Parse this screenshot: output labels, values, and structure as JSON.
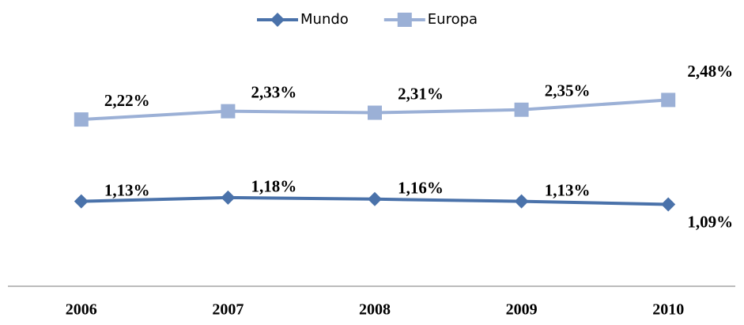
{
  "chart_data": {
    "type": "line",
    "categories": [
      "2006",
      "2007",
      "2008",
      "2009",
      "2010"
    ],
    "series": [
      {
        "name": "Mundo",
        "color": "#4a72aa",
        "marker": "diamond",
        "values": [
          1.13,
          1.18,
          1.16,
          1.13,
          1.09
        ],
        "value_labels": [
          "1,13%",
          "1,18%",
          "1,16%",
          "1,13%",
          "1,09%"
        ]
      },
      {
        "name": "Europa",
        "color": "#9bb0d6",
        "marker": "square",
        "values": [
          2.22,
          2.33,
          2.31,
          2.35,
          2.48
        ],
        "value_labels": [
          "2,22%",
          "2,33%",
          "2,31%",
          "2,35%",
          "2,48%"
        ]
      }
    ],
    "ylim": [
      0,
      3
    ],
    "legend": "top"
  }
}
